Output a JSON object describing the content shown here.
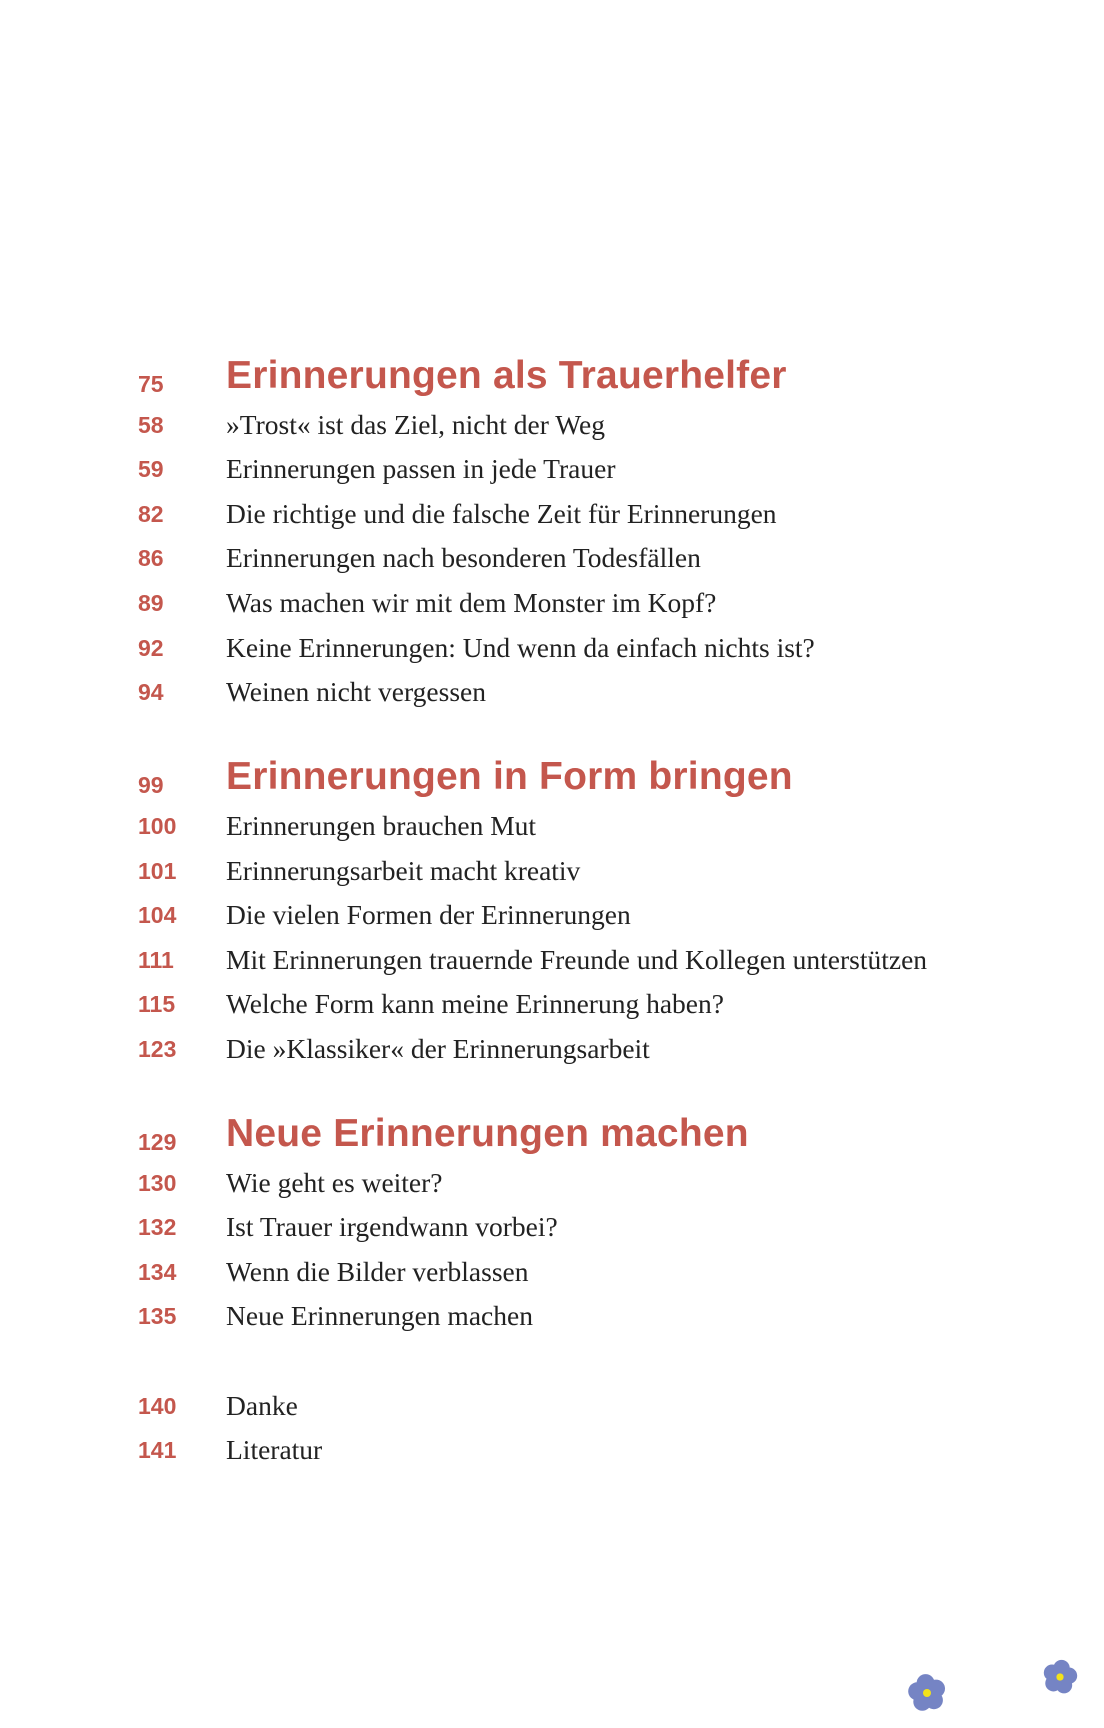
{
  "accent_color": "#c4574d",
  "flower_color": "#7584c4",
  "flower_center_color": "#f2e21a",
  "sections": [
    {
      "heading": {
        "page": "75",
        "title": "Erinnerungen als Trauerhelfer"
      },
      "entries": [
        {
          "page": "58",
          "title": "»Trost« ist das Ziel, nicht der Weg"
        },
        {
          "page": "59",
          "title": "Erinnerungen passen in jede Trauer"
        },
        {
          "page": "82",
          "title": "Die richtige und die falsche Zeit für Erinnerungen"
        },
        {
          "page": "86",
          "title": "Erinnerungen nach besonderen Todesfällen"
        },
        {
          "page": "89",
          "title": "Was machen wir mit dem Monster im Kopf?"
        },
        {
          "page": "92",
          "title": "Keine Erinnerungen: Und wenn da einfach nichts ist?"
        },
        {
          "page": "94",
          "title": "Weinen nicht vergessen"
        }
      ]
    },
    {
      "heading": {
        "page": "99",
        "title": "Erinnerungen in Form bringen"
      },
      "entries": [
        {
          "page": "100",
          "title": "Erinnerungen brauchen Mut"
        },
        {
          "page": "101",
          "title": "Erinnerungsarbeit macht kreativ"
        },
        {
          "page": "104",
          "title": "Die vielen Formen der Erinnerungen"
        },
        {
          "page": "111",
          "title": "Mit Erinnerungen trauernde Freunde und Kollegen unterstützen"
        },
        {
          "page": "115",
          "title": "Welche Form kann meine Erinnerung haben?"
        },
        {
          "page": "123",
          "title": "Die »Klassiker« der Erinnerungsarbeit"
        }
      ]
    },
    {
      "heading": {
        "page": "129",
        "title": "Neue Erinnerungen machen"
      },
      "entries": [
        {
          "page": "130",
          "title": "Wie geht es weiter?"
        },
        {
          "page": "132",
          "title": "Ist Trauer irgendwann vorbei?"
        },
        {
          "page": "134",
          "title": "Wenn die Bilder verblassen"
        },
        {
          "page": "135",
          "title": "Neue Erinnerungen machen"
        }
      ]
    },
    {
      "heading": null,
      "entries": [
        {
          "page": "140",
          "title": "Danke"
        },
        {
          "page": "141",
          "title": "Literatur"
        }
      ]
    }
  ],
  "decorations": [
    "forget-me-not-flower-icon",
    "forget-me-not-flower-icon"
  ]
}
